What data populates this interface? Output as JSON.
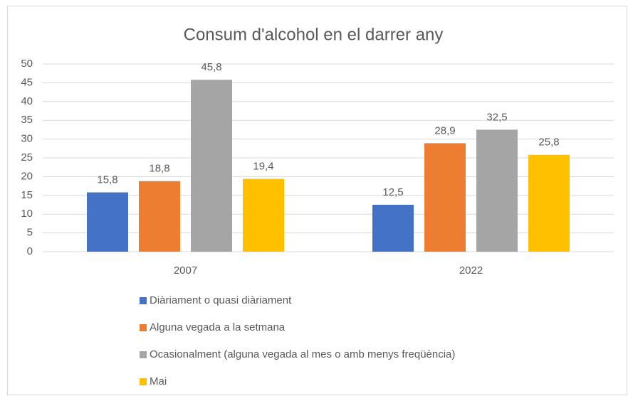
{
  "chart_data": {
    "type": "bar",
    "title": "Consum d'alcohol en el darrer any",
    "categories": [
      "2007",
      "2022"
    ],
    "series": [
      {
        "name": "Diàriament o quasi diàriament",
        "color": "#4472c4",
        "values": [
          15.8,
          12.5
        ],
        "value_labels": [
          "15,8",
          "12,5"
        ]
      },
      {
        "name": "Alguna vegada a la setmana",
        "color": "#ed7d31",
        "values": [
          18.8,
          28.9
        ],
        "value_labels": [
          "18,8",
          "28,9"
        ]
      },
      {
        "name": "Ocasionalment (alguna vegada al mes o amb menys freqüència)",
        "color": "#a5a5a5",
        "values": [
          45.8,
          32.5
        ],
        "value_labels": [
          "45,8",
          "32,5"
        ]
      },
      {
        "name": "Mai",
        "color": "#ffc000",
        "values": [
          19.4,
          25.8
        ],
        "value_labels": [
          "19,4",
          "25,8"
        ]
      }
    ],
    "ylim": [
      0,
      50
    ],
    "yticks": [
      0,
      5,
      10,
      15,
      20,
      25,
      30,
      35,
      40,
      45,
      50
    ],
    "grid": true,
    "legend": "bottom"
  }
}
